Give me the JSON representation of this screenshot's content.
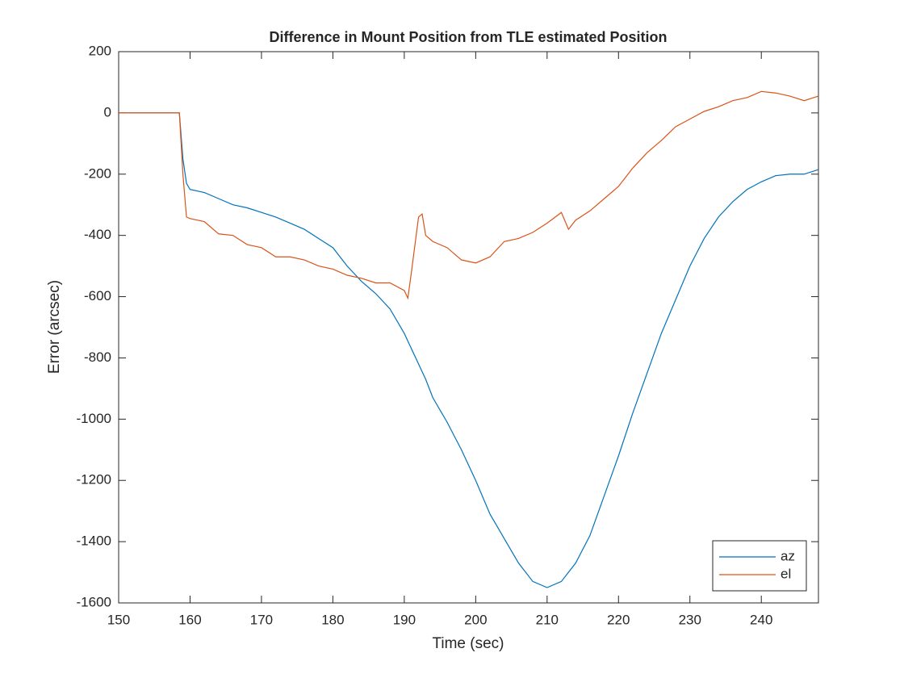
{
  "chart_data": {
    "type": "line",
    "title": "Difference in Mount Position from TLE estimated Position",
    "xlabel": "Time (sec)",
    "ylabel": "Error (arcsec)",
    "x": [
      150,
      152,
      154,
      156,
      158,
      158.5,
      159,
      159.5,
      160,
      162,
      164,
      166,
      168,
      170,
      172,
      174,
      176,
      178,
      180,
      182,
      184,
      186,
      188,
      190,
      190.5,
      191,
      192,
      192.5,
      193,
      194,
      196,
      198,
      200,
      202,
      204,
      206,
      208,
      210,
      212,
      213,
      214,
      216,
      218,
      220,
      222,
      224,
      226,
      228,
      230,
      232,
      234,
      236,
      238,
      240,
      242,
      244,
      246,
      248
    ],
    "series": [
      {
        "name": "az",
        "color": "#0072bd",
        "values": [
          0,
          0,
          0,
          0,
          0,
          0,
          -150,
          -230,
          -250,
          -260,
          -280,
          -300,
          -310,
          -325,
          -340,
          -360,
          -380,
          -410,
          -440,
          -500,
          -550,
          -590,
          -640,
          -720,
          -745,
          -770,
          -820,
          -845,
          -870,
          -930,
          -1010,
          -1100,
          -1200,
          -1310,
          -1390,
          -1470,
          -1530,
          -1550,
          -1530,
          -1500,
          -1470,
          -1380,
          -1250,
          -1120,
          -980,
          -850,
          -720,
          -610,
          -500,
          -410,
          -340,
          -290,
          -250,
          -225,
          -205,
          -200,
          -200,
          -185
        ]
      },
      {
        "name": "el",
        "color": "#d95319",
        "values": [
          0,
          0,
          0,
          0,
          0,
          0,
          -200,
          -340,
          -345,
          -355,
          -395,
          -400,
          -430,
          -440,
          -470,
          -470,
          -480,
          -500,
          -510,
          -530,
          -540,
          -555,
          -555,
          -580,
          -605,
          -520,
          -340,
          -330,
          -400,
          -420,
          -440,
          -480,
          -490,
          -470,
          -420,
          -410,
          -390,
          -360,
          -325,
          -380,
          -350,
          -320,
          -280,
          -240,
          -180,
          -130,
          -90,
          -45,
          -20,
          5,
          20,
          40,
          50,
          70,
          65,
          55,
          40,
          55
        ]
      }
    ],
    "xlim": [
      150,
      248
    ],
    "ylim": [
      -1600,
      200
    ],
    "xticks": [
      150,
      160,
      170,
      180,
      190,
      200,
      210,
      220,
      230,
      240
    ],
    "yticks": [
      -1600,
      -1400,
      -1200,
      -1000,
      -800,
      -600,
      -400,
      -200,
      0,
      200
    ],
    "legend": "lower right"
  }
}
